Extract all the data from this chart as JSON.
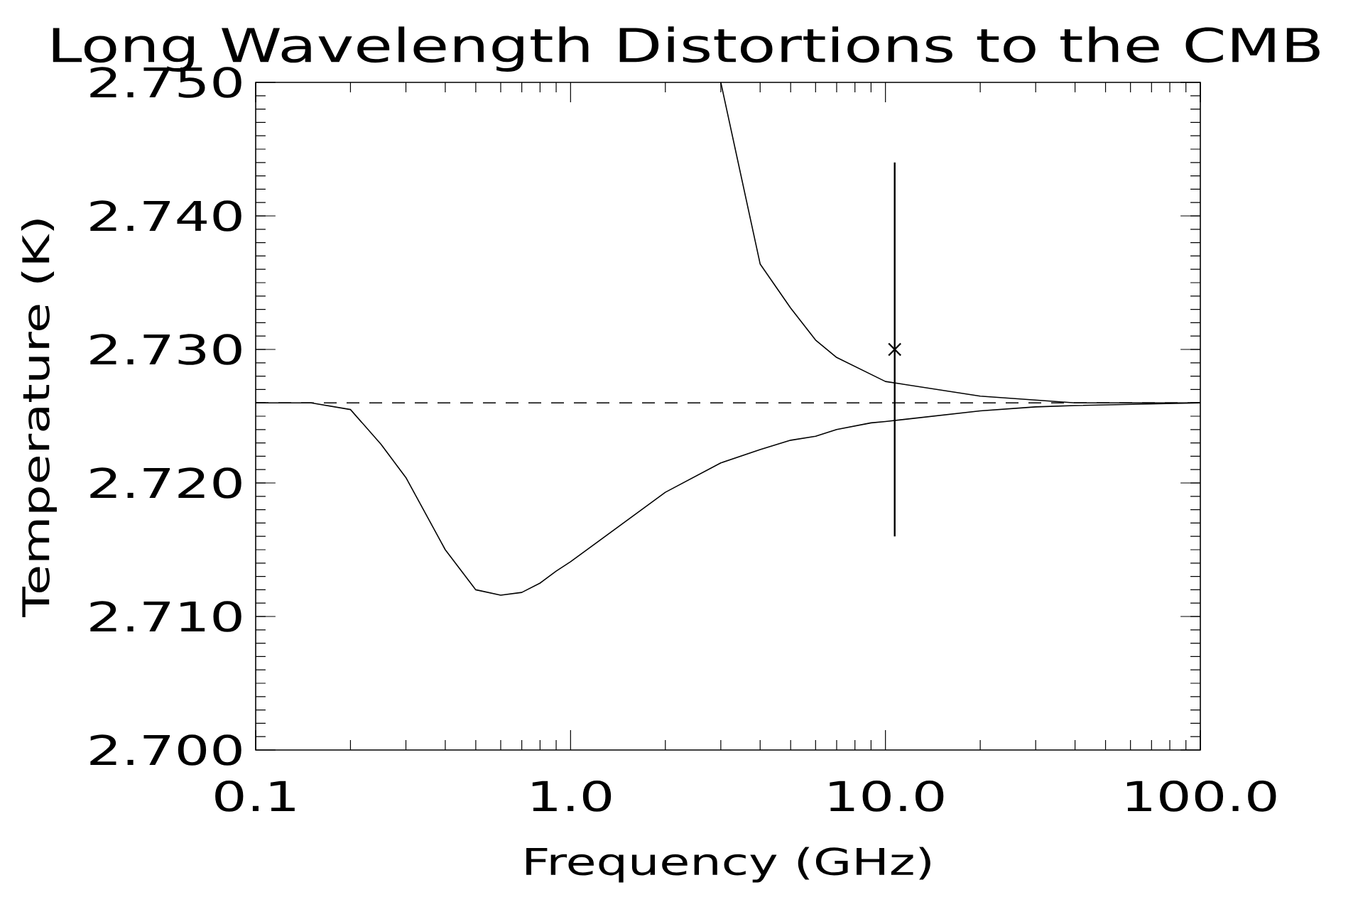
{
  "chart_data": {
    "type": "line",
    "title": "Long Wavelength Distortions to the CMB",
    "xlabel": "Frequency (GHz)",
    "ylabel": "Temperature (K)",
    "log": "x",
    "xlim": [
      0.1,
      100
    ],
    "ylim": [
      2.7,
      2.75
    ],
    "xticks": [
      {
        "value": 0.1,
        "label": "0.1"
      },
      {
        "value": 1,
        "label": "1.0"
      },
      {
        "value": 10,
        "label": "10.0"
      },
      {
        "value": 100,
        "label": "100.0"
      }
    ],
    "yticks": [
      {
        "value": 2.7,
        "label": "2.700"
      },
      {
        "value": 2.71,
        "label": "2.710"
      },
      {
        "value": 2.72,
        "label": "2.720"
      },
      {
        "value": 2.73,
        "label": "2.730"
      },
      {
        "value": 2.74,
        "label": "2.740"
      },
      {
        "value": 2.75,
        "label": "2.750"
      }
    ],
    "ref_lines": [
      {
        "axis": "y",
        "value": 2.726,
        "line_style": "dashed",
        "color": "#000000"
      }
    ],
    "series": [
      {
        "color": "#000000",
        "line_style": "solid",
        "x": [
          0.1,
          0.15,
          0.2,
          0.25,
          0.3,
          0.4,
          0.5,
          0.6,
          0.7,
          0.8,
          0.9,
          1.0,
          2.0,
          3.0,
          4.0,
          5.0,
          6.0,
          7.0,
          9.0,
          10.0,
          20.0,
          30.0,
          40.0,
          100.0
        ],
        "values": [
          2.726,
          2.726,
          2.7255,
          2.7229,
          2.7204,
          2.715,
          2.712,
          2.7116,
          2.7118,
          2.7125,
          2.7134,
          2.7141,
          2.7193,
          2.7215,
          2.7225,
          2.7232,
          2.7235,
          2.724,
          2.7245,
          2.7246,
          2.7254,
          2.7257,
          2.7258,
          2.726
        ]
      },
      {
        "color": "#000000",
        "line_style": "solid",
        "x": [
          3.0,
          4.0,
          5.0,
          6.0,
          7.0,
          10.0,
          20.0,
          40.0,
          100.0
        ],
        "values": [
          2.75,
          2.7364,
          2.7331,
          2.7307,
          2.7294,
          2.7276,
          2.7265,
          2.726,
          2.726
        ]
      },
      {
        "type": "scatter",
        "color": "#000000",
        "marker": "cross",
        "x": [
          10.7
        ],
        "values": [
          2.73
        ],
        "errors": [
          0.014
        ]
      }
    ]
  }
}
